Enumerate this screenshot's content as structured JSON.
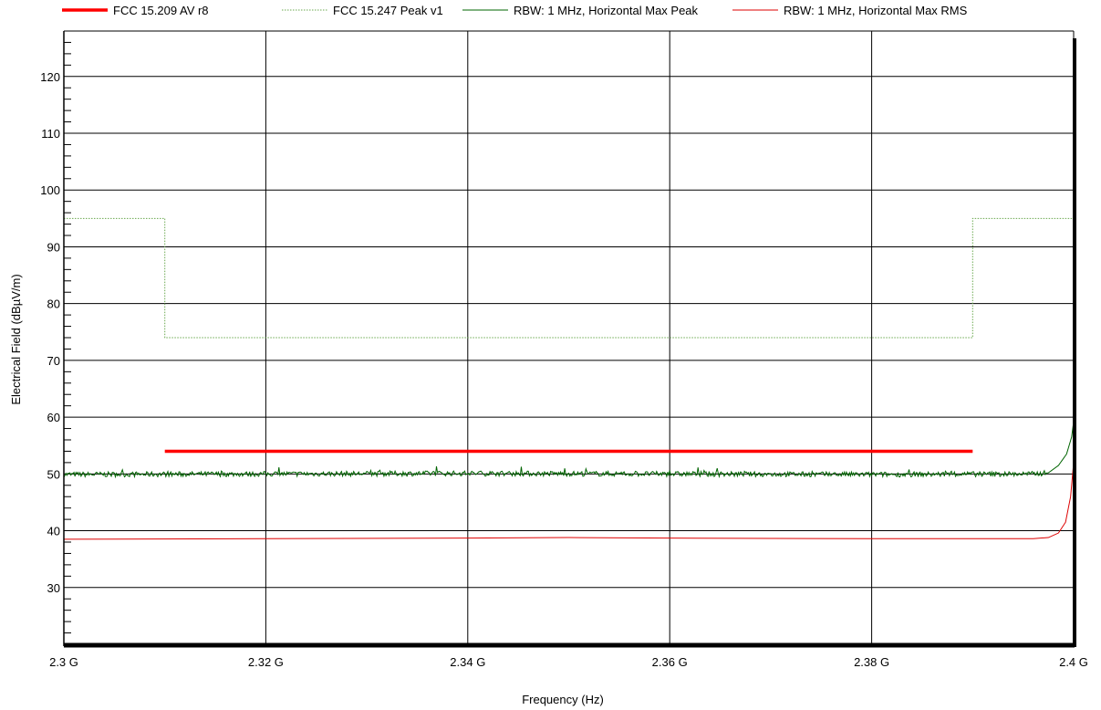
{
  "chart_data": {
    "type": "line",
    "title": "",
    "xlabel": "Frequency (Hz)",
    "ylabel": "Electrical Field (dBµV/m)",
    "xlim": [
      2300000000.0,
      2400000000.0
    ],
    "ylim": [
      20,
      128
    ],
    "x_ticks": [
      {
        "value": 2300000000.0,
        "label": "2.3 G"
      },
      {
        "value": 2320000000.0,
        "label": "2.32 G"
      },
      {
        "value": 2340000000.0,
        "label": "2.34 G"
      },
      {
        "value": 2360000000.0,
        "label": "2.36 G"
      },
      {
        "value": 2380000000.0,
        "label": "2.38 G"
      },
      {
        "value": 2400000000.0,
        "label": "2.4 G"
      }
    ],
    "y_ticks": [
      {
        "value": 30,
        "label": "30"
      },
      {
        "value": 40,
        "label": "40"
      },
      {
        "value": 50,
        "label": "50"
      },
      {
        "value": 60,
        "label": "60"
      },
      {
        "value": 70,
        "label": "70"
      },
      {
        "value": 80,
        "label": "80"
      },
      {
        "value": 90,
        "label": "90"
      },
      {
        "value": 100,
        "label": "100"
      },
      {
        "value": 110,
        "label": "110"
      },
      {
        "value": 120,
        "label": "120"
      }
    ],
    "grid": true,
    "legend_position": "top",
    "series": [
      {
        "name": "FCC 15.209 AV r8",
        "color": "#ff0000",
        "style": "thick",
        "x": [
          2310000000.0,
          2390000000.0
        ],
        "y": [
          54,
          54
        ]
      },
      {
        "name": "FCC 15.247 Peak v1",
        "color": "#6aa84f",
        "style": "dotted",
        "x": [
          2300000000.0,
          2310000000.0,
          2310000000.0,
          2390000000.0,
          2390000000.0,
          2400000000.0
        ],
        "y": [
          95,
          95,
          74,
          74,
          95,
          95
        ]
      },
      {
        "name": "RBW: 1 MHz, Horizontal Max Peak",
        "color": "#006400",
        "style": "noisy",
        "x": [
          2300000000.0,
          2320000000.0,
          2340000000.0,
          2360000000.0,
          2380000000.0,
          2396000000.0,
          2397500000.0,
          2398500000.0,
          2399300000.0,
          2399800000.0,
          2400000000.0
        ],
        "y": [
          49.9,
          50.0,
          50.1,
          50.0,
          49.9,
          50.0,
          50.2,
          51.5,
          53.5,
          56.5,
          59.2
        ]
      },
      {
        "name": "RBW: 1 MHz, Horizontal Max RMS",
        "color": "#dd0000",
        "style": "thin",
        "x": [
          2300000000.0,
          2320000000.0,
          2340000000.0,
          2350000000.0,
          2360000000.0,
          2380000000.0,
          2396000000.0,
          2397500000.0,
          2398500000.0,
          2399200000.0,
          2399700000.0,
          2400000000.0
        ],
        "y": [
          38.5,
          38.6,
          38.7,
          38.8,
          38.7,
          38.6,
          38.6,
          38.8,
          39.6,
          41.5,
          46.0,
          52.0
        ]
      }
    ]
  }
}
